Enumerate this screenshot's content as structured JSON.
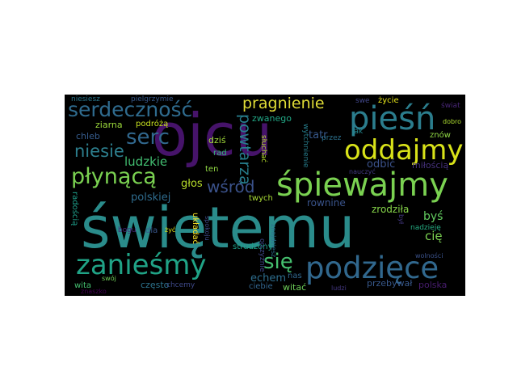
{
  "words": [
    {
      "text": "świętemu",
      "color": "#2a8c8b"
    },
    {
      "text": "ojcu",
      "color": "#46136a"
    },
    {
      "text": "śpiewajmy",
      "color": "#7ad151"
    },
    {
      "text": "podzięce",
      "color": "#31688e"
    },
    {
      "text": "pieśń",
      "color": "#2b7d8d"
    },
    {
      "text": "oddajmy",
      "color": "#d8e219"
    },
    {
      "text": "zanieśmy",
      "color": "#20a386"
    },
    {
      "text": "serdeczność",
      "color": "#2f6b8e"
    },
    {
      "text": "płynącą",
      "color": "#7ad151"
    },
    {
      "text": "serc",
      "color": "#31688e"
    },
    {
      "text": "pragnienie",
      "color": "#e1dd37"
    },
    {
      "text": "niesie",
      "color": "#2d7f8e"
    },
    {
      "text": "ludzkie",
      "color": "#42be71"
    },
    {
      "text": "głos",
      "color": "#b8de29"
    },
    {
      "text": "wśród",
      "color": "#3b528b"
    },
    {
      "text": "polskiej",
      "color": "#2f6c8e"
    },
    {
      "text": "powtarza",
      "color": "#277f8e"
    },
    {
      "text": "się",
      "color": "#46c06f"
    },
    {
      "text": "echem",
      "color": "#2e6e8e"
    },
    {
      "text": "tatr",
      "color": "#38598c"
    },
    {
      "text": "zwanego",
      "color": "#22a785"
    },
    {
      "text": "ziarna",
      "color": "#9cd93b"
    },
    {
      "text": "podróżą",
      "color": "#c7e020"
    },
    {
      "text": "chleb",
      "color": "#365c8d"
    },
    {
      "text": "dziś",
      "color": "#a0da39"
    },
    {
      "text": "odbić",
      "color": "#3b528b"
    },
    {
      "text": "rownine",
      "color": "#3a548c"
    },
    {
      "text": "miłością",
      "color": "#46327e"
    },
    {
      "text": "zrodziła",
      "color": "#86d549"
    },
    {
      "text": "byś",
      "color": "#62cb5f"
    },
    {
      "text": "cię",
      "color": "#7ad151"
    },
    {
      "text": "przebywał",
      "color": "#38598c"
    },
    {
      "text": "polska",
      "color": "#481d6f"
    },
    {
      "text": "nadzieję",
      "color": "#25ac82"
    },
    {
      "text": "ciebie",
      "color": "#32658e"
    },
    {
      "text": "witać",
      "color": "#6ece58"
    },
    {
      "text": "często",
      "color": "#2c738e"
    },
    {
      "text": "chcemy",
      "color": "#3e4989"
    },
    {
      "text": "wita",
      "color": "#44bf70"
    },
    {
      "text": "radością",
      "color": "#1e9d89"
    },
    {
      "text": "niesiesz",
      "color": "#2a788e"
    },
    {
      "text": "pielgrzymie",
      "color": "#375a8c"
    },
    {
      "text": "życie",
      "color": "#e5e419"
    },
    {
      "text": "swe",
      "color": "#404688"
    },
    {
      "text": "świat",
      "color": "#482677"
    },
    {
      "text": "dobro",
      "color": "#addc30"
    },
    {
      "text": "znów",
      "color": "#8fd744"
    },
    {
      "text": "jak",
      "color": "#24878e"
    },
    {
      "text": "przez",
      "color": "#2c718e"
    },
    {
      "text": "wytchnienie",
      "color": "#277f8e"
    },
    {
      "text": "rad",
      "color": "#35b779"
    },
    {
      "text": "ten",
      "color": "#90d743"
    },
    {
      "text": "słuchać",
      "color": "#b5de2b"
    },
    {
      "text": "strudzony",
      "color": "#1fa088"
    },
    {
      "text": "twych",
      "color": "#a8db34"
    },
    {
      "text": "nas",
      "color": "#31688e"
    },
    {
      "text": "dla",
      "color": "#39568c"
    },
    {
      "text": "bogu",
      "color": "#482475"
    },
    {
      "text": "układać",
      "color": "#fde725"
    },
    {
      "text": "żyć",
      "color": "#dde318"
    },
    {
      "text": "ojczyźnie",
      "color": "#3f4788"
    },
    {
      "text": "znajdziesz",
      "color": "#2d708e"
    },
    {
      "text": "ludzi",
      "color": "#453882"
    },
    {
      "text": "nauczyć",
      "color": "#443a83"
    },
    {
      "text": "był",
      "color": "#443983"
    },
    {
      "text": "wolności",
      "color": "#3b528b"
    },
    {
      "text": "swój",
      "color": "#70cf57"
    },
    {
      "text": "znaszko",
      "color": "#440154"
    },
    {
      "text": "spokoju",
      "color": "#3e4a89"
    }
  ]
}
